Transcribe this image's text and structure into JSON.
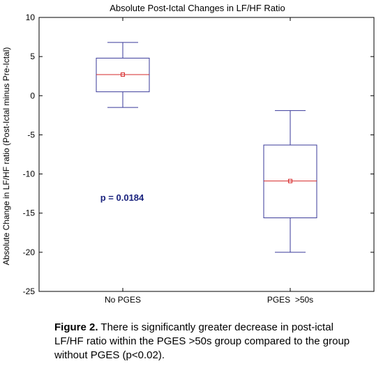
{
  "chart_data": {
    "type": "box",
    "title": "Absolute Post-Ictal Changes in LF/HF Ratio",
    "xlabel": "",
    "ylabel": "Absolute Change in LF/HF ratio (Post-Ictal minus Pre-Ictal)",
    "categories": [
      "No PGES",
      "PGES  >50s"
    ],
    "boxes": [
      {
        "category": "No PGES",
        "whisker_low": -1.5,
        "q1": 0.5,
        "median": 2.7,
        "mean": 2.7,
        "q3": 4.8,
        "whisker_high": 6.8
      },
      {
        "category": "PGES  >50s",
        "whisker_low": -20,
        "q1": -15.6,
        "median": -10.9,
        "mean": -10.9,
        "q3": -6.3,
        "whisker_high": -1.9
      }
    ],
    "ylim": [
      -25,
      10
    ],
    "yticks": [
      10,
      5,
      0,
      -5,
      -10,
      -15,
      -20,
      -25
    ],
    "annotation": "p = 0.0184",
    "grid": false,
    "colors": {
      "box": "#3a3a9a",
      "median": "#d62728",
      "mean_marker": "#d62728",
      "annotation": "#1a237e"
    }
  },
  "caption": {
    "label": "Figure 2.",
    "text": " There is significantly greater decrease in post-ictal LF/HF ratio within the PGES >50s group compared to the group without PGES (p<0.02)."
  }
}
